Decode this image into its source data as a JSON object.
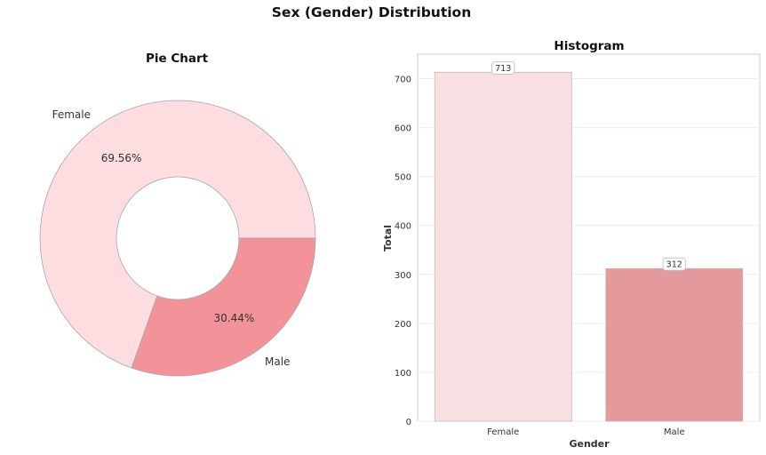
{
  "figure": {
    "title": "Sex (Gender) Distribution"
  },
  "colors": {
    "female": "#fddde0",
    "male": "#f29399",
    "female_bar": "#f8e0e2",
    "male_bar": "#e4999d",
    "edge": "#a8a8a8",
    "grid": "#ececec",
    "text": "#333333"
  },
  "chart_data": [
    {
      "type": "pie",
      "title": "Pie Chart",
      "donut": true,
      "labels": [
        "Female",
        "Male"
      ],
      "values": [
        69.56,
        30.44
      ],
      "value_labels": [
        "69.56%",
        "30.44%"
      ]
    },
    {
      "type": "bar",
      "title": "Histogram",
      "xlabel": "Gender",
      "ylabel": "Total",
      "categories": [
        "Female",
        "Male"
      ],
      "values": [
        713,
        312
      ],
      "value_labels": [
        "713",
        "312"
      ],
      "ylim": [
        0,
        750
      ],
      "yticks": [
        0,
        100,
        200,
        300,
        400,
        500,
        600,
        700
      ],
      "grid": true,
      "legend": "none"
    }
  ]
}
